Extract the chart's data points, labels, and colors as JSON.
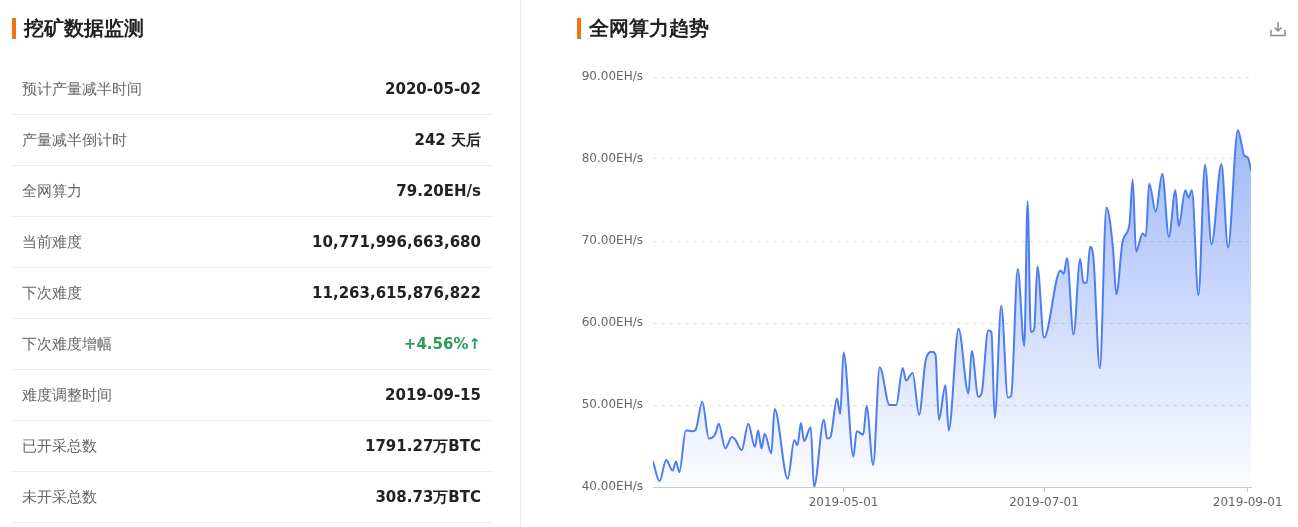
{
  "chart_data": [
    {
      "type": "other",
      "title": "挖矿数据监测",
      "annotations": [
        "预计产量减半时间",
        "2020-05-02",
        "产量减半倒计时",
        "242 天后",
        "全网算力",
        "79.20EH/s",
        "当前难度",
        "10,771,996,663,680",
        "下次难度",
        "11,263,615,876,822",
        "下次难度增幅",
        "+4.56%↑",
        "难度调整时间",
        "2019-09-15",
        "已开采总数",
        "1791.27万BTC",
        "未开采总数",
        "308.73万BTC"
      ],
      "colors": [
        "#666666",
        "#222222",
        "#666666",
        "#222222",
        "#666666",
        "#222222",
        "#666666",
        "#222222",
        "#666666",
        "#222222",
        "#666666",
        "#2a9d5c",
        "#666666",
        "#222222",
        "#666666",
        "#222222",
        "#666666",
        "#222222"
      ]
    },
    {
      "type": "area",
      "title": "全网算力趋势",
      "color": "#4d7cf3",
      "x": [
        "2019-03-04",
        "2019-03-06",
        "2019-03-08",
        "2019-03-10",
        "2019-03-11",
        "2019-03-12",
        "2019-03-14",
        "2019-03-16",
        "2019-03-17",
        "2019-03-19",
        "2019-03-21",
        "2019-03-23",
        "2019-03-24",
        "2019-03-26",
        "2019-03-28",
        "2019-03-29",
        "2019-03-31",
        "2019-04-02",
        "2019-04-04",
        "2019-04-05",
        "2019-04-06",
        "2019-04-07",
        "2019-04-09",
        "2019-04-10",
        "2019-04-14",
        "2019-04-16",
        "2019-04-17",
        "2019-04-18",
        "2019-04-19",
        "2019-04-21",
        "2019-04-22",
        "2019-04-25",
        "2019-04-26",
        "2019-04-27",
        "2019-04-29",
        "2019-04-30",
        "2019-05-01",
        "2019-05-04",
        "2019-05-05",
        "2019-05-07",
        "2019-05-08",
        "2019-05-10",
        "2019-05-12",
        "2019-05-15",
        "2019-05-17",
        "2019-05-19",
        "2019-05-20",
        "2019-05-22",
        "2019-05-24",
        "2019-05-26",
        "2019-05-28",
        "2019-05-29",
        "2019-05-30",
        "2019-06-01",
        "2019-06-02",
        "2019-06-05",
        "2019-06-08",
        "2019-06-09",
        "2019-06-11",
        "2019-06-12",
        "2019-06-14",
        "2019-06-15",
        "2019-06-16",
        "2019-06-18",
        "2019-06-20",
        "2019-06-21",
        "2019-06-23",
        "2019-06-25",
        "2019-06-26",
        "2019-06-27",
        "2019-06-28",
        "2019-06-29",
        "2019-07-01",
        "2019-07-06",
        "2019-07-07",
        "2019-07-08",
        "2019-07-10",
        "2019-07-12",
        "2019-07-13",
        "2019-07-14",
        "2019-07-15",
        "2019-07-16",
        "2019-07-18",
        "2019-07-20",
        "2019-07-22",
        "2019-07-23",
        "2019-07-25",
        "2019-07-27",
        "2019-07-28",
        "2019-07-29",
        "2019-07-31",
        "2019-08-01",
        "2019-08-02",
        "2019-08-04",
        "2019-08-06",
        "2019-08-08",
        "2019-08-10",
        "2019-08-11",
        "2019-08-13",
        "2019-08-14",
        "2019-08-15",
        "2019-08-17",
        "2019-08-19",
        "2019-08-21",
        "2019-08-24",
        "2019-08-26",
        "2019-08-29",
        "2019-08-31",
        "2019-09-01",
        "2019-09-02"
      ],
      "values": [
        43.1,
        40.7,
        43.3,
        42.0,
        43.1,
        41.8,
        46.9,
        46.8,
        47.0,
        50.4,
        45.9,
        46.5,
        47.7,
        44.7,
        46.1,
        45.8,
        44.5,
        47.7,
        44.9,
        46.9,
        44.7,
        46.5,
        44.1,
        49.5,
        41.0,
        45.7,
        45.1,
        47.8,
        45.6,
        47.3,
        40.0,
        48.2,
        45.9,
        46.1,
        50.8,
        48.9,
        56.4,
        43.7,
        46.8,
        46.4,
        49.9,
        42.7,
        54.6,
        50.0,
        50.0,
        54.5,
        53.0,
        53.9,
        48.8,
        55.5,
        56.5,
        56.1,
        48.2,
        52.4,
        46.9,
        59.3,
        51.4,
        56.6,
        51.0,
        51.4,
        59.1,
        58.9,
        48.4,
        62.1,
        50.9,
        51.1,
        66.6,
        57.2,
        74.8,
        58.9,
        59.2,
        66.9,
        58.2,
        66.4,
        66.0,
        67.9,
        58.6,
        67.8,
        64.9,
        64.9,
        69.3,
        68.1,
        54.5,
        74.1,
        69.1,
        63.5,
        70.1,
        72.0,
        77.5,
        68.7,
        70.9,
        70.6,
        77.0,
        73.6,
        78.2,
        70.5,
        76.2,
        71.8,
        76.2,
        75.3,
        76.2,
        63.4,
        79.3,
        69.6,
        79.4,
        69.2,
        83.5,
        80.4,
        80.2,
        78.7
      ],
      "xlim": [
        "2019-03-04",
        "2019-09-02"
      ],
      "xticks": [
        "2019-05-01",
        "2019-07-01",
        "2019-09-01"
      ],
      "ylim": [
        40,
        90
      ],
      "yticks": [
        {
          "value": 40,
          "label": "40.00EH/s"
        },
        {
          "value": 50,
          "label": "50.00EH/s"
        },
        {
          "value": 60,
          "label": "60.00EH/s"
        },
        {
          "value": 70,
          "label": "70.00EH/s"
        },
        {
          "value": 80,
          "label": "80.00EH/s"
        },
        {
          "value": 90,
          "label": "90.00EH/s"
        }
      ],
      "grid": "y"
    }
  ]
}
